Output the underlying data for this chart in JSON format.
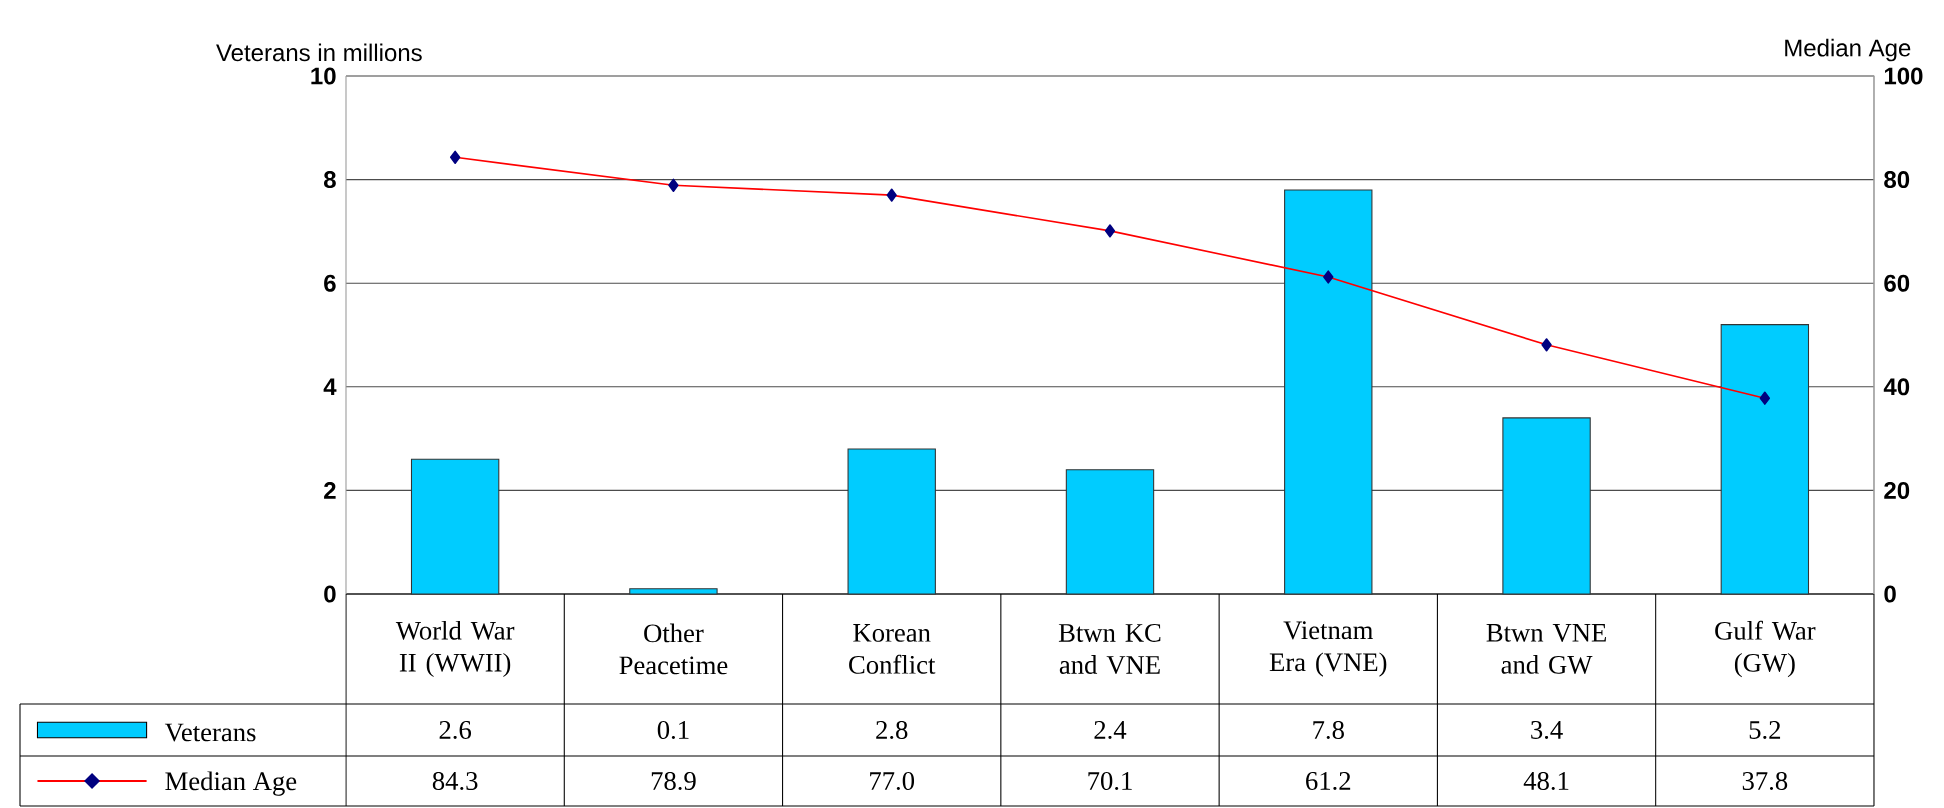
{
  "chart_data": {
    "type": "bar",
    "ylabel": "Veterans in millions",
    "y2label": "Median Age",
    "categories": [
      "World War II (WWII)",
      "Other Peacetime",
      "Korean Conflict",
      "Btwn KC and VNE",
      "Vietnam Era (VNE)",
      "Btwn VNE and GW",
      "Gulf War (GW)"
    ],
    "series": [
      {
        "name": "Veterans",
        "color": "#00ccff",
        "values": [
          2.6,
          0.1,
          2.8,
          2.4,
          7.8,
          3.4,
          5.2
        ],
        "value_labels": [
          "2.6",
          "0.1",
          "2.8",
          "2.4",
          "7.8",
          "3.4",
          "5.2"
        ]
      },
      {
        "name": "Median Age",
        "type": "line",
        "axis": "y2",
        "marker": "diamond",
        "color": "#ff0000",
        "values": [
          84.3,
          78.9,
          77.0,
          70.1,
          61.2,
          48.1,
          37.8
        ],
        "value_labels": [
          "84.3",
          "78.9",
          "77.0",
          "70.1",
          "61.2",
          "48.1",
          "37.8"
        ]
      }
    ],
    "ylim": [
      0,
      10
    ],
    "yticks": [
      0,
      2,
      4,
      6,
      8,
      10
    ],
    "y2lim": [
      0,
      100
    ],
    "y2ticks": [
      0,
      20,
      40,
      60,
      80,
      100
    ],
    "grid": "y",
    "legend": "bottom left"
  }
}
